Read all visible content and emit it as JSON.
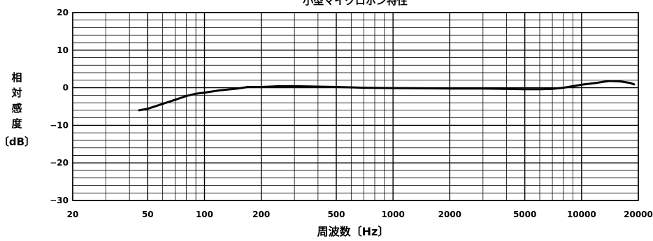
{
  "chart_data": {
    "type": "line",
    "title": "小型マイクロホン特性",
    "xlabel": "周波数〔Hz〕",
    "ylabel": [
      "相",
      "対",
      "感",
      "度",
      "〔dB〕"
    ],
    "x_scale": "log",
    "xlim": [
      20,
      20000
    ],
    "ylim": [
      -30,
      20
    ],
    "x_ticks": [
      20,
      50,
      100,
      200,
      500,
      1000,
      2000,
      5000,
      10000,
      20000
    ],
    "y_ticks": [
      20,
      10,
      0,
      -10,
      -20,
      -30
    ],
    "grid": true,
    "legend": "none",
    "line_color": "#000000",
    "series": [
      {
        "x": [
          45,
          50,
          60,
          70,
          80,
          90,
          100,
          120,
          150,
          170,
          200,
          250,
          300,
          400,
          500,
          700,
          1000,
          2000,
          3000,
          5000,
          6000,
          7000,
          8000,
          9000,
          10000,
          12000,
          14000,
          16000,
          18000,
          19000
        ],
        "y": [
          -6,
          -5.6,
          -4.3,
          -3.2,
          -2.2,
          -1.6,
          -1.3,
          -0.7,
          -0.2,
          0.2,
          0.2,
          0.4,
          0.4,
          0.3,
          0.2,
          0,
          -0.1,
          -0.2,
          -0.2,
          -0.4,
          -0.4,
          -0.3,
          0,
          0.4,
          0.8,
          1.3,
          1.8,
          1.7,
          1.3,
          0.9
        ]
      }
    ]
  }
}
